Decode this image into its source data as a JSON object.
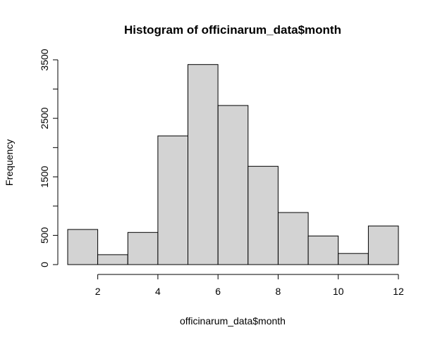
{
  "chart_data": {
    "type": "bar",
    "title": "Histogram of officinarum_data$month",
    "xlabel": "officinarum_data$month",
    "ylabel": "Frequency",
    "bins": [
      {
        "start": 1,
        "end": 2,
        "count": 600
      },
      {
        "start": 2,
        "end": 3,
        "count": 170
      },
      {
        "start": 3,
        "end": 4,
        "count": 550
      },
      {
        "start": 4,
        "end": 5,
        "count": 2200
      },
      {
        "start": 5,
        "end": 6,
        "count": 3420
      },
      {
        "start": 6,
        "end": 7,
        "count": 2720
      },
      {
        "start": 7,
        "end": 8,
        "count": 1680
      },
      {
        "start": 8,
        "end": 9,
        "count": 890
      },
      {
        "start": 9,
        "end": 10,
        "count": 490
      },
      {
        "start": 10,
        "end": 11,
        "count": 190
      },
      {
        "start": 11,
        "end": 12,
        "count": 660
      }
    ],
    "xlim": [
      1,
      12
    ],
    "ylim": [
      0,
      3500
    ],
    "x_ticks": [
      2,
      4,
      6,
      8,
      10,
      12
    ],
    "y_ticks": [
      0,
      500,
      1000,
      1500,
      2000,
      2500,
      3000,
      3500
    ],
    "y_tick_labels": [
      "0",
      "500",
      "",
      "1500",
      "",
      "2500",
      "",
      "3500"
    ],
    "colors": {
      "bar_fill": "#d3d3d3",
      "bar_stroke": "#000000"
    },
    "grid": false
  }
}
